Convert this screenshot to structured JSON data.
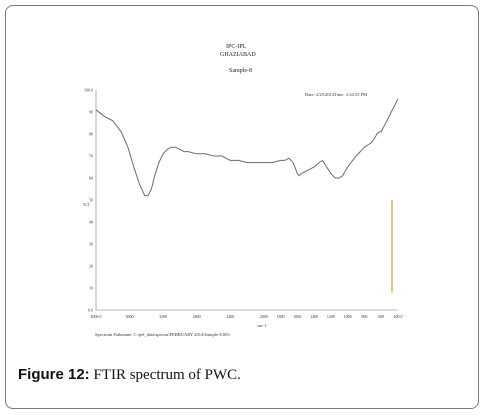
{
  "header": {
    "line1": "IPC-IPL",
    "line2": "GHAZIABAD",
    "line3": "Sample-8"
  },
  "meta": {
    "date": "Date: 2/25/2014",
    "time": "Time: 3:34:55 PM"
  },
  "footer": {
    "path": "Spectrum Pathname: C:\\pel_data\\spectra\\FEBRUARY 2014\\Sample-8.003"
  },
  "caption": {
    "label": "Figure 12:",
    "text": "FTIR spectrum of PWC."
  },
  "chart_data": {
    "type": "line",
    "ylabel": "%T",
    "xlabel": "cm-1",
    "xlim": [
      4000,
      400
    ],
    "ylim": [
      0,
      100
    ],
    "x_ticks": [
      "4000.0",
      "3600",
      "3200",
      "2800",
      "2400",
      "2000",
      "1800",
      "1600",
      "1400",
      "1200",
      "1000",
      "800",
      "600",
      "400.0"
    ],
    "x_tick_values": [
      4000,
      3600,
      3200,
      2800,
      2400,
      2000,
      1800,
      1600,
      1400,
      1200,
      1000,
      800,
      600,
      400
    ],
    "y_ticks": [
      "0.0",
      "10",
      "20",
      "30",
      "40",
      "50",
      "60",
      "70",
      "80",
      "90",
      "100.0"
    ],
    "y_tick_values": [
      0,
      10,
      20,
      30,
      40,
      50,
      60,
      70,
      80,
      90,
      100
    ],
    "series": [
      {
        "color": "#6b6b6b",
        "x": [
          4000,
          3900,
          3800,
          3700,
          3620,
          3550,
          3480,
          3420,
          3380,
          3340,
          3300,
          3250,
          3200,
          3150,
          3100,
          3050,
          3000,
          2950,
          2900,
          2800,
          2700,
          2600,
          2500,
          2400,
          2300,
          2200,
          2100,
          2000,
          1900,
          1800,
          1750,
          1700,
          1650,
          1620,
          1600,
          1580,
          1550,
          1500,
          1450,
          1400,
          1370,
          1340,
          1300,
          1250,
          1200,
          1150,
          1100,
          1060,
          1030,
          1000,
          960,
          900,
          850,
          800,
          760,
          720,
          680,
          650,
          620,
          600,
          560,
          520,
          480,
          440,
          400
        ],
        "y": [
          91,
          88,
          86,
          81,
          74,
          65,
          57,
          52,
          52,
          55,
          61,
          67,
          71,
          73,
          74,
          74,
          73,
          72,
          72,
          71,
          71,
          70,
          70,
          68,
          68,
          67,
          67,
          67,
          67,
          68,
          68,
          69,
          67,
          64,
          62,
          61,
          62,
          63,
          64,
          65,
          66,
          67,
          68,
          65,
          62,
          60,
          60,
          61,
          63,
          65,
          67,
          70,
          72,
          74,
          75,
          76,
          78,
          80,
          81,
          81,
          84,
          87,
          90,
          93,
          96
        ]
      }
    ],
    "marker_line": {
      "x": 400,
      "y_from": 8,
      "y_to": 50,
      "color": "#d9a02a"
    }
  }
}
